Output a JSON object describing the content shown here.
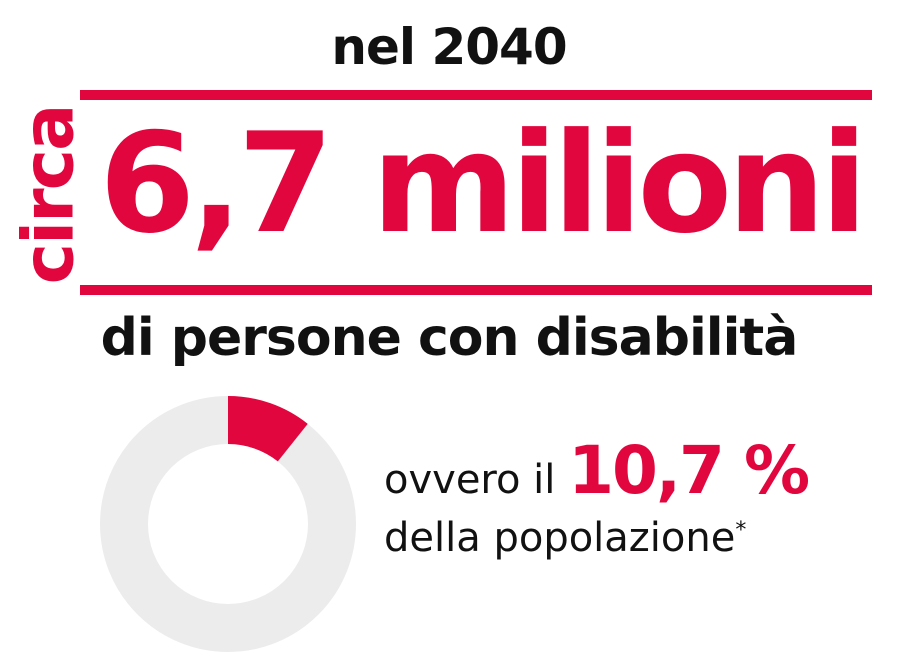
{
  "heading": {
    "year_label": "nel 2040",
    "circa_label": "circa",
    "headline": "6,7 milioni",
    "subtitle": "di persone con disabilità"
  },
  "stat": {
    "prefix": "ovvero il",
    "percent_label": "10,7 %",
    "suffix": "della popolazione",
    "footnote_mark": "*",
    "percent_value": 10.7
  },
  "colors": {
    "accent": "#e2063f",
    "track": "#ececec",
    "text": "#111111"
  }
}
